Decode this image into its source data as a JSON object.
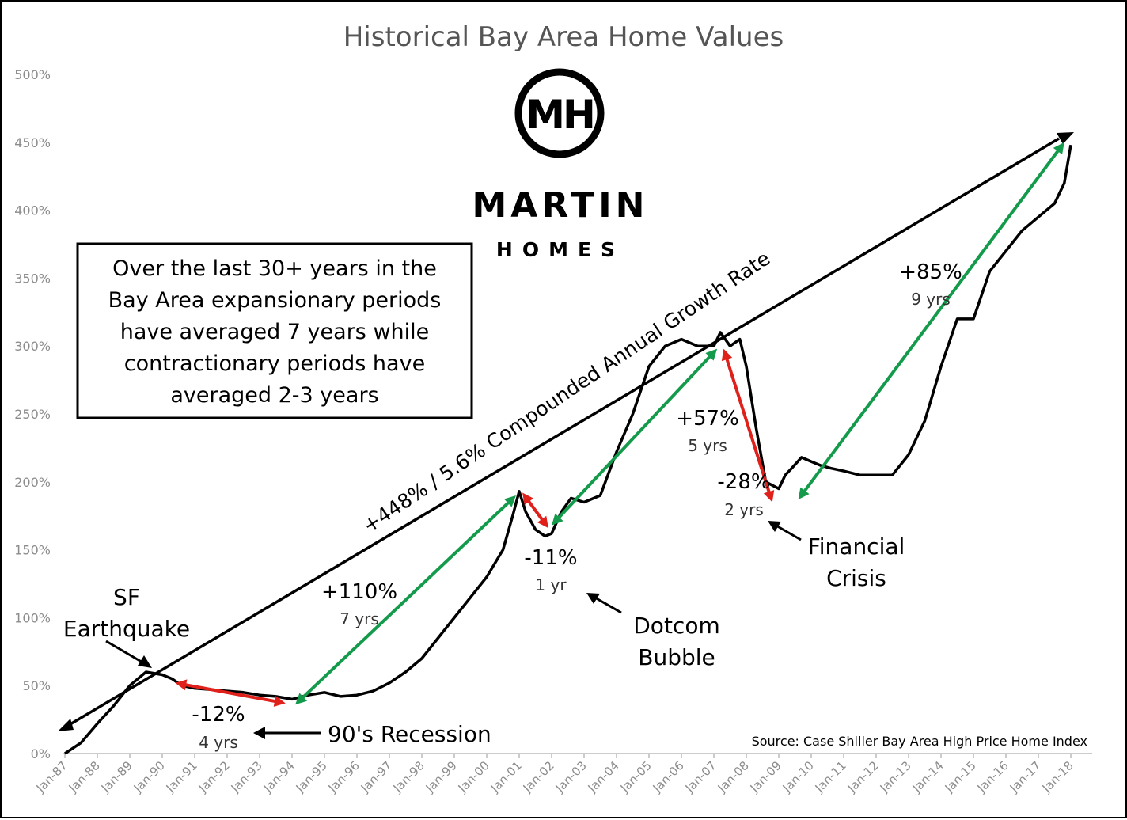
{
  "chart_data": {
    "type": "line",
    "title": "Historical Bay Area Home Values",
    "ylim": [
      0,
      500
    ],
    "y_ticks": [
      "0%",
      "50%",
      "100%",
      "150%",
      "200%",
      "250%",
      "300%",
      "350%",
      "400%",
      "450%",
      "500%"
    ],
    "x_ticks": [
      "Jan-87",
      "Jan-88",
      "Jan-89",
      "Jan-90",
      "Jan-91",
      "Jan-92",
      "Jan-93",
      "Jan-94",
      "Jan-95",
      "Jan-96",
      "Jan-97",
      "Jan-98",
      "Jan-99",
      "Jan-00",
      "Jan-01",
      "Jan-02",
      "Jan-03",
      "Jan-04",
      "Jan-05",
      "Jan-06",
      "Jan-07",
      "Jan-08",
      "Jan-09",
      "Jan-10",
      "Jan-11",
      "Jan-12",
      "Jan-13",
      "Jan-14",
      "Jan-15",
      "Jan-16",
      "Jan-17",
      "Jan-18"
    ],
    "series": [
      {
        "x": [
          1987.0,
          1987.5,
          1988.0,
          1988.5,
          1989.0,
          1989.5,
          1990.0,
          1990.3,
          1990.6,
          1991.0,
          1991.5,
          1992.0,
          1992.5,
          1993.0,
          1993.5,
          1994.0,
          1994.5,
          1995.0,
          1995.5,
          1996.0,
          1996.5,
          1997.0,
          1997.5,
          1998.0,
          1998.5,
          1999.0,
          1999.5,
          2000.0,
          2000.5,
          2000.8,
          2001.0,
          2001.2,
          2001.5,
          2001.8,
          2002.0,
          2002.3,
          2002.6,
          2003.0,
          2003.5,
          2004.0,
          2004.5,
          2005.0,
          2005.5,
          2006.0,
          2006.5,
          2007.0,
          2007.2,
          2007.5,
          2007.8,
          2008.0,
          2008.3,
          2008.6,
          2009.0,
          2009.2,
          2009.4,
          2009.7,
          2010.0,
          2010.3,
          2010.6,
          2011.0,
          2011.5,
          2012.0,
          2012.5,
          2013.0,
          2013.5,
          2014.0,
          2014.5,
          2015.0,
          2015.5,
          2016.0,
          2016.5,
          2017.0,
          2017.5,
          2017.8,
          2018.0
        ],
        "values": [
          0,
          8,
          22,
          35,
          50,
          60,
          58,
          55,
          50,
          48,
          47,
          46,
          45,
          43,
          42,
          40,
          43,
          45,
          42,
          43,
          46,
          52,
          60,
          70,
          85,
          100,
          115,
          130,
          150,
          175,
          193,
          178,
          165,
          160,
          162,
          178,
          188,
          185,
          190,
          222,
          250,
          285,
          300,
          305,
          300,
          300,
          310,
          300,
          305,
          285,
          240,
          200,
          195,
          205,
          210,
          218,
          215,
          212,
          210,
          208,
          205,
          205,
          205,
          220,
          245,
          285,
          320,
          320,
          355,
          370,
          385,
          395,
          405,
          420,
          448
        ]
      }
    ],
    "rate_line_label": "+448% / 5.6% Compounded Annual Growth Rate",
    "periods": [
      {
        "pct": "-12%",
        "yrs": "4 yrs",
        "x1": 1990.4,
        "y1": 52,
        "x2": 1993.8,
        "y2": 37,
        "color": "#e0201b"
      },
      {
        "pct": "+110%",
        "yrs": "7 yrs",
        "x1": 1994.1,
        "y1": 36,
        "x2": 2000.9,
        "y2": 190,
        "color": "#149a4b"
      },
      {
        "pct": "-11%",
        "yrs": "1 yr",
        "x1": 2001.1,
        "y1": 192,
        "x2": 2001.9,
        "y2": 166,
        "color": "#e0201b"
      },
      {
        "pct": "+57%",
        "yrs": "5 yrs",
        "x1": 2002.0,
        "y1": 168,
        "x2": 2007.1,
        "y2": 298,
        "color": "#149a4b"
      },
      {
        "pct": "-28%",
        "yrs": "2 yrs",
        "x1": 2007.3,
        "y1": 298,
        "x2": 2008.8,
        "y2": 185,
        "color": "#e0201b"
      },
      {
        "pct": "+85%",
        "yrs": "9 yrs",
        "x1": 2009.6,
        "y1": 187,
        "x2": 2017.8,
        "y2": 450,
        "color": "#149a4b"
      }
    ],
    "annotations": {
      "earthquake": [
        "SF",
        "Earthquake"
      ],
      "recession": "90's Recession",
      "dotcom": [
        "Dotcom",
        "Bubble"
      ],
      "financial": [
        "Financial",
        "Crisis"
      ],
      "source": "Source: Case Shiller Bay Area High Price Home Index"
    },
    "callout": [
      "Over the last 30+ years in the",
      "Bay Area expansionary periods",
      "have averaged 7 years while",
      "contractionary periods have",
      "averaged 2-3 years"
    ],
    "logo": {
      "mark": "MH",
      "name": "MARTIN",
      "sub": "HOMES"
    },
    "colors": {
      "line": "#000000",
      "increase": "#149a4b",
      "decrease": "#e0201b",
      "tick": "#8c8c8c"
    }
  }
}
